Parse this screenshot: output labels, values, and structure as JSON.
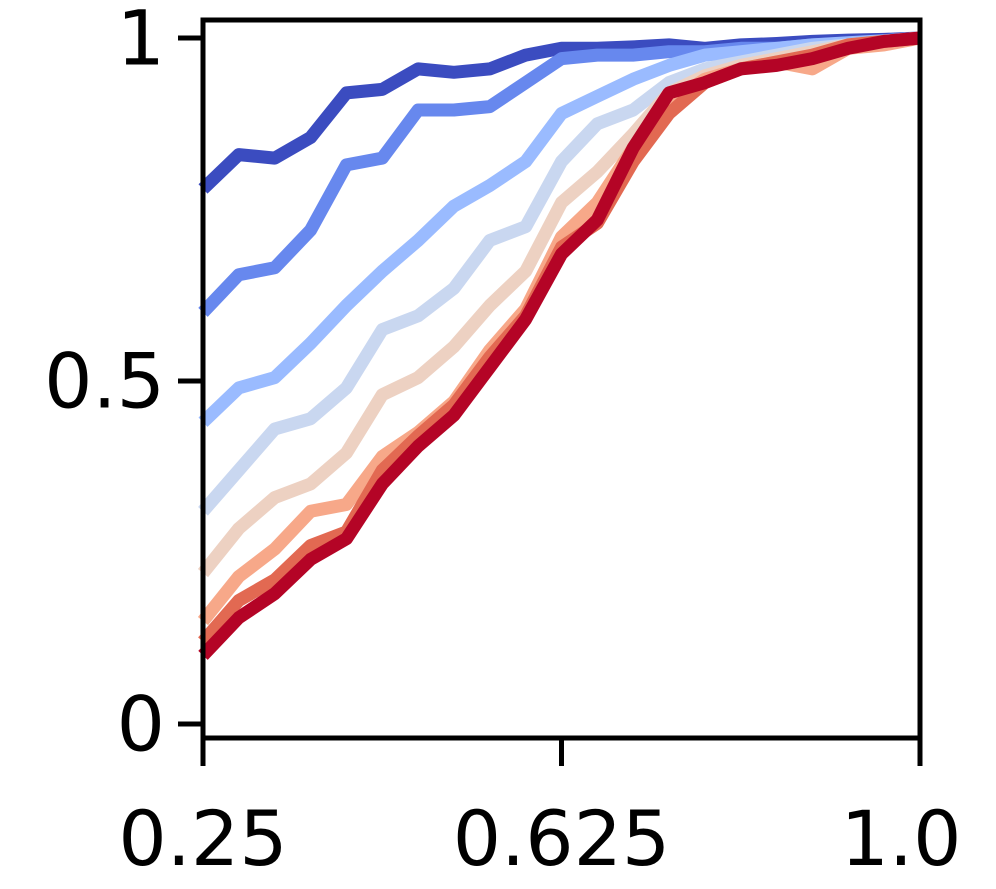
{
  "chart_data": {
    "type": "line",
    "title": "",
    "xlabel": "",
    "ylabel": "",
    "xlim": [
      0.25,
      1.0
    ],
    "ylim": [
      0,
      1
    ],
    "grid": false,
    "x_ticks": [
      0.25,
      0.625,
      1.0
    ],
    "x_tick_labels": [
      "0.25",
      "0.625",
      "1.0"
    ],
    "y_ticks": [
      0,
      0.5,
      1
    ],
    "y_tick_labels": [
      "0",
      "0.5",
      "1"
    ],
    "x": [
      0.25,
      0.2875,
      0.325,
      0.3625,
      0.4,
      0.4375,
      0.475,
      0.5125,
      0.55,
      0.5875,
      0.625,
      0.6625,
      0.7,
      0.7375,
      0.775,
      0.8125,
      0.85,
      0.8875,
      0.925,
      0.9625,
      1.0
    ],
    "series": [
      {
        "color": "#3b4cc0",
        "values": [
          0.78,
          0.83,
          0.825,
          0.855,
          0.92,
          0.925,
          0.955,
          0.95,
          0.955,
          0.975,
          0.985,
          0.985,
          0.987,
          0.99,
          0.985,
          0.99,
          0.992,
          0.995,
          0.997,
          0.998,
          1.0
        ]
      },
      {
        "color": "#6788ee",
        "values": [
          0.6,
          0.655,
          0.665,
          0.72,
          0.815,
          0.825,
          0.895,
          0.895,
          0.9,
          0.935,
          0.97,
          0.975,
          0.975,
          0.98,
          0.98,
          0.985,
          0.985,
          0.99,
          0.992,
          0.995,
          1.0
        ]
      },
      {
        "color": "#9abbff",
        "values": [
          0.44,
          0.49,
          0.505,
          0.555,
          0.61,
          0.66,
          0.705,
          0.755,
          0.785,
          0.82,
          0.89,
          0.915,
          0.94,
          0.96,
          0.975,
          0.98,
          0.985,
          0.99,
          0.993,
          0.996,
          1.0
        ]
      },
      {
        "color": "#c9d7f0",
        "values": [
          0.31,
          0.37,
          0.43,
          0.445,
          0.49,
          0.575,
          0.595,
          0.635,
          0.705,
          0.725,
          0.82,
          0.875,
          0.895,
          0.935,
          0.955,
          0.965,
          0.975,
          0.985,
          0.99,
          0.995,
          1.0
        ]
      },
      {
        "color": "#edd1c2",
        "values": [
          0.22,
          0.285,
          0.33,
          0.35,
          0.395,
          0.48,
          0.505,
          0.55,
          0.61,
          0.66,
          0.76,
          0.805,
          0.86,
          0.92,
          0.945,
          0.96,
          0.97,
          0.98,
          0.99,
          0.995,
          1.0
        ]
      },
      {
        "color": "#f7a889",
        "values": [
          0.15,
          0.215,
          0.255,
          0.31,
          0.32,
          0.39,
          0.425,
          0.47,
          0.545,
          0.605,
          0.71,
          0.76,
          0.84,
          0.905,
          0.94,
          0.955,
          0.965,
          0.955,
          0.985,
          0.99,
          1.0
        ]
      },
      {
        "color": "#e26952",
        "values": [
          0.12,
          0.18,
          0.21,
          0.26,
          0.28,
          0.37,
          0.42,
          0.465,
          0.535,
          0.595,
          0.695,
          0.73,
          0.82,
          0.89,
          0.935,
          0.955,
          0.965,
          0.975,
          0.99,
          0.995,
          1.0
        ]
      },
      {
        "color": "#b40426",
        "values": [
          0.1,
          0.155,
          0.19,
          0.24,
          0.27,
          0.35,
          0.405,
          0.45,
          0.52,
          0.59,
          0.685,
          0.735,
          0.84,
          0.92,
          0.935,
          0.955,
          0.96,
          0.97,
          0.985,
          0.995,
          1.0
        ]
      }
    ]
  }
}
